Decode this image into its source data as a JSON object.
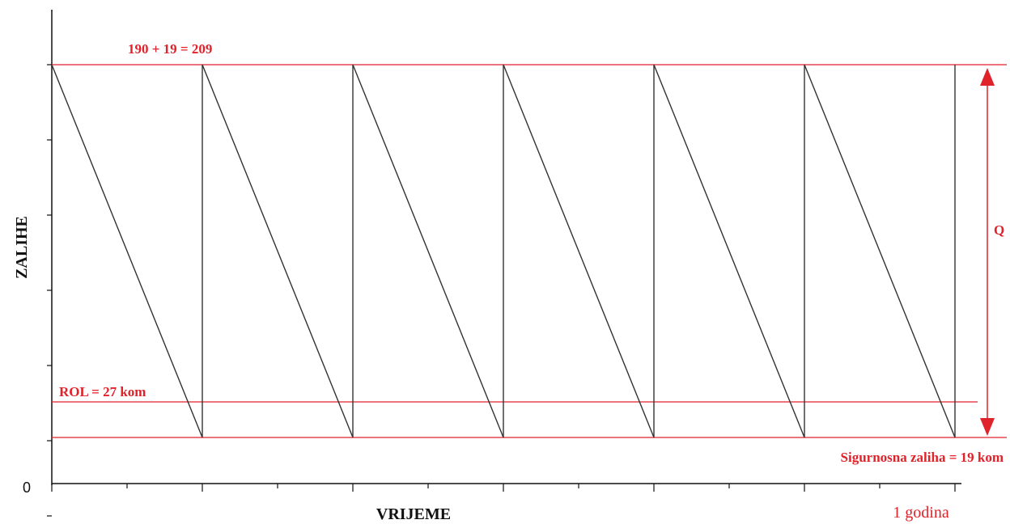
{
  "chart_data": {
    "type": "line",
    "xlabel": "VRIJEME",
    "ylabel": "ZALIHE",
    "origin_label": "0",
    "x_end_label": "1 godina",
    "cycles": 6,
    "max_level": 209,
    "safety_stock": 19,
    "rol": 27,
    "x": [
      0,
      1,
      1,
      2,
      2,
      3,
      3,
      4,
      4,
      5,
      5,
      6,
      6
    ],
    "series": [
      {
        "values": [
          209,
          19,
          209,
          19,
          209,
          19,
          209,
          19,
          209,
          19,
          209,
          19,
          209
        ]
      }
    ],
    "reference_lines": [
      {
        "key": "max",
        "label": "190 + 19 = 209",
        "value": 209,
        "color": "#e0222a"
      },
      {
        "key": "rol",
        "label": "ROL = 27 kom",
        "value": 27,
        "color": "#e0222a"
      },
      {
        "key": "safety",
        "label": "Sigurnosna zaliha = 19 kom",
        "value": 19,
        "color": "#e0222a"
      }
    ],
    "q_label": "Q",
    "x_minor_ticks_per_cycle": 2,
    "y_ticks": 6,
    "grid": false,
    "colors": {
      "line": "#333333",
      "axis": "#111111",
      "accent": "#e0222a"
    }
  }
}
